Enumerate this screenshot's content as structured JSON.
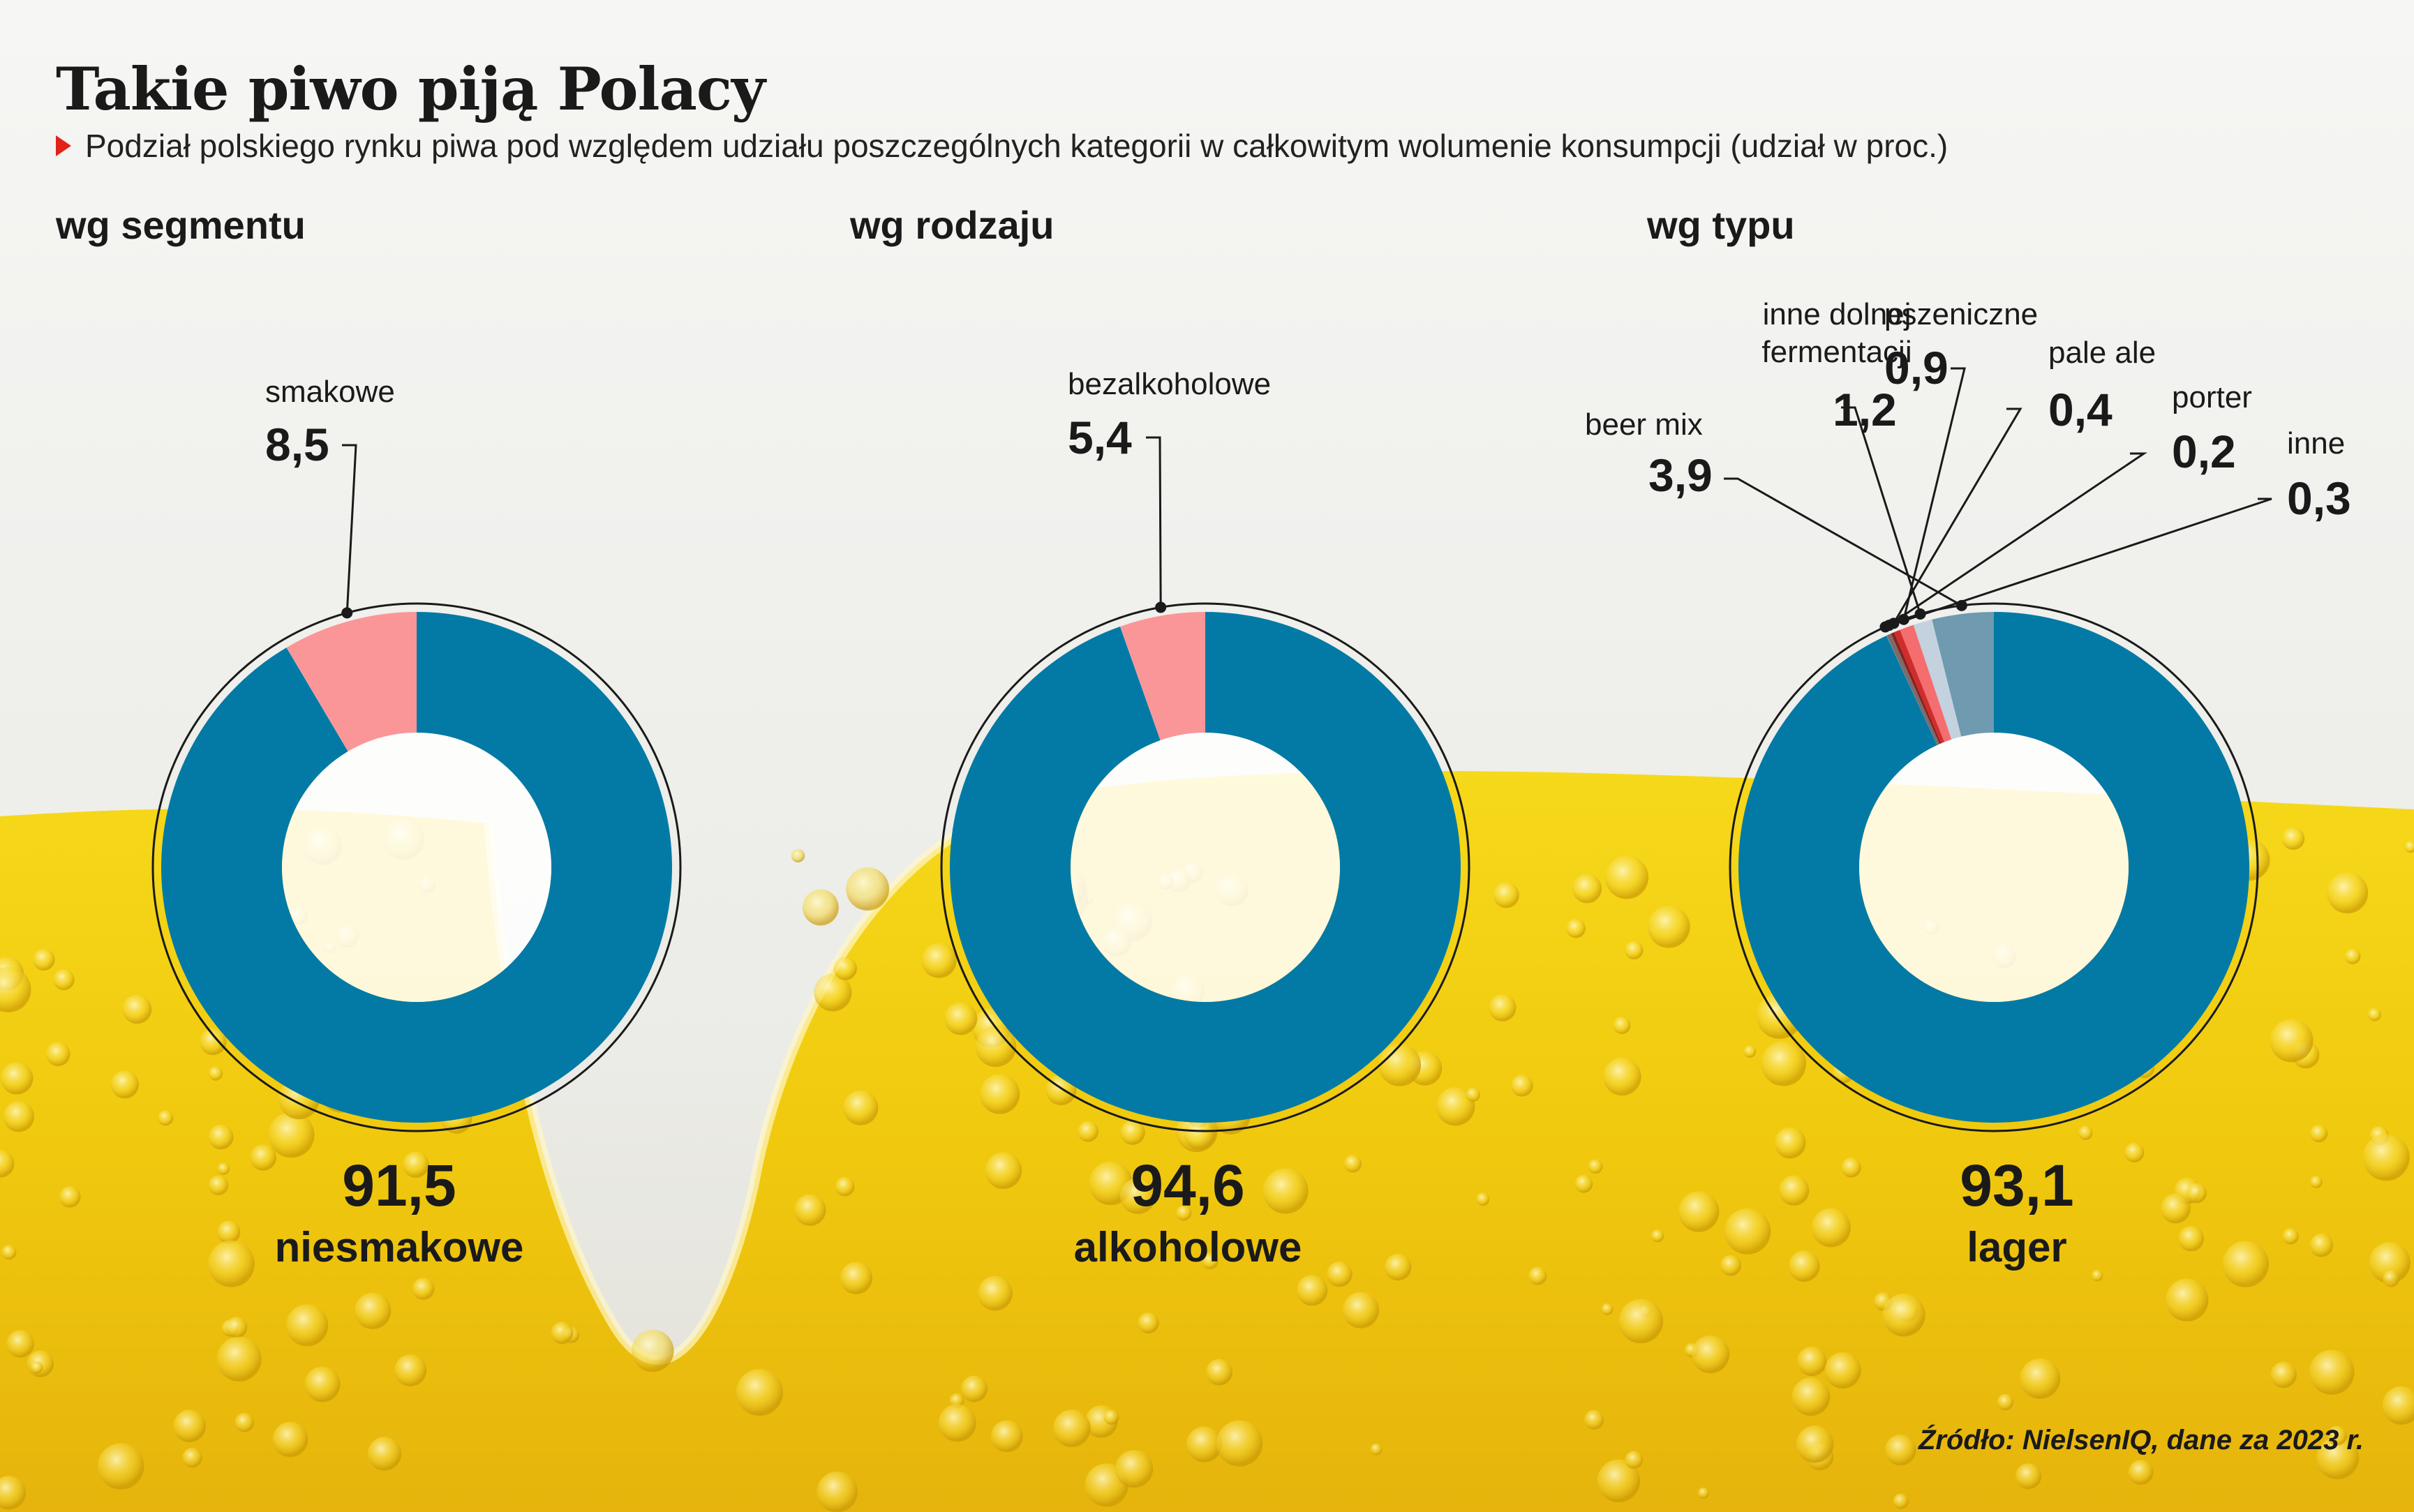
{
  "title": "Takie piwo piją Polacy",
  "subtitle": "Podział polskiego rynku piwa pod względem udziału poszczególnych kategorii w całkowitym wolumenie konsumpcji (udział w proc.)",
  "source": "Źródło: NielsenIQ, dane za 2023 r.",
  "colors": {
    "main": "#037aa5",
    "accent_pink": "#fb9698",
    "beer_mix": "#6f9ab0",
    "inne_dolnej": "#c3d2de",
    "pszeniczne": "#f46d6f",
    "pale_ale": "#cf2d2b",
    "porter": "#8a2020",
    "inne": "#7d6b6b"
  },
  "chart_data": [
    {
      "type": "pie",
      "title": "wg segmentu",
      "slices": [
        {
          "label": "niesmakowe",
          "value": 91.5,
          "display": "91,5",
          "color": "#037aa5"
        },
        {
          "label": "smakowe",
          "value": 8.5,
          "display": "8,5",
          "color": "#fb9698"
        }
      ]
    },
    {
      "type": "pie",
      "title": "wg rodzaju",
      "slices": [
        {
          "label": "alkoholowe",
          "value": 94.6,
          "display": "94,6",
          "color": "#037aa5"
        },
        {
          "label": "bezalkoholowe",
          "value": 5.4,
          "display": "5,4",
          "color": "#fb9698"
        }
      ]
    },
    {
      "type": "pie",
      "title": "wg typu",
      "slices": [
        {
          "label": "lager",
          "value": 93.1,
          "display": "93,1",
          "color": "#037aa5"
        },
        {
          "label": "beer mix",
          "value": 3.9,
          "display": "3,9",
          "color": "#6f9ab0"
        },
        {
          "label": "inne dolnej fermentacji",
          "label_lines": [
            "inne dolnej",
            "fermentacji"
          ],
          "value": 1.2,
          "display": "1,2",
          "color": "#c3d2de"
        },
        {
          "label": "pszeniczne",
          "value": 0.9,
          "display": "0,9",
          "color": "#f46d6f"
        },
        {
          "label": "pale ale",
          "value": 0.4,
          "display": "0,4",
          "color": "#cf2d2b"
        },
        {
          "label": "porter",
          "value": 0.2,
          "display": "0,2",
          "color": "#8a2020"
        },
        {
          "label": "inne",
          "value": 0.3,
          "display": "0,3",
          "color": "#7d6b6b"
        }
      ]
    }
  ]
}
